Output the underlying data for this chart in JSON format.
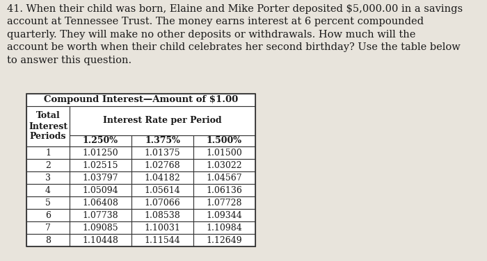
{
  "problem_number": "41.",
  "problem_text_lines": [
    "When their child was born, Elaine and Mike Porter deposited $5,000.00 in a savings",
    "account at Tennessee Trust. The money earns interest at 6 percent compounded",
    "quarterly. They will make no other deposits or withdrawals. How much will the",
    "account be worth when their child celebrates her second birthday? Use the table below",
    "to answer this question."
  ],
  "table_title": "Compound Interest—Amount of $1.00",
  "col_header_main": "Interest Rate per Period",
  "col_header_row": "Total\nInterest\nPeriods",
  "rate_headers": [
    "1.250%",
    "1.375%",
    "1.500%"
  ],
  "periods": [
    "1",
    "2",
    "3",
    "4",
    "5",
    "6",
    "7",
    "8"
  ],
  "values": [
    [
      "1.01250",
      "1.01375",
      "1.01500"
    ],
    [
      "1.02515",
      "1.02768",
      "1.03022"
    ],
    [
      "1.03797",
      "1.04182",
      "1.04567"
    ],
    [
      "1.05094",
      "1.05614",
      "1.06136"
    ],
    [
      "1.06408",
      "1.07066",
      "1.07728"
    ],
    [
      "1.07738",
      "1.08538",
      "1.09344"
    ],
    [
      "1.09085",
      "1.10031",
      "1.10984"
    ],
    [
      "1.10448",
      "1.11544",
      "1.12649"
    ]
  ],
  "bg_color": "#e8e4dc",
  "table_bg": "#ffffff",
  "text_color": "#1a1a1a",
  "font_size_problem": 10.5,
  "font_size_table_title": 9.5,
  "font_size_table_header": 9,
  "font_size_table_data": 9
}
